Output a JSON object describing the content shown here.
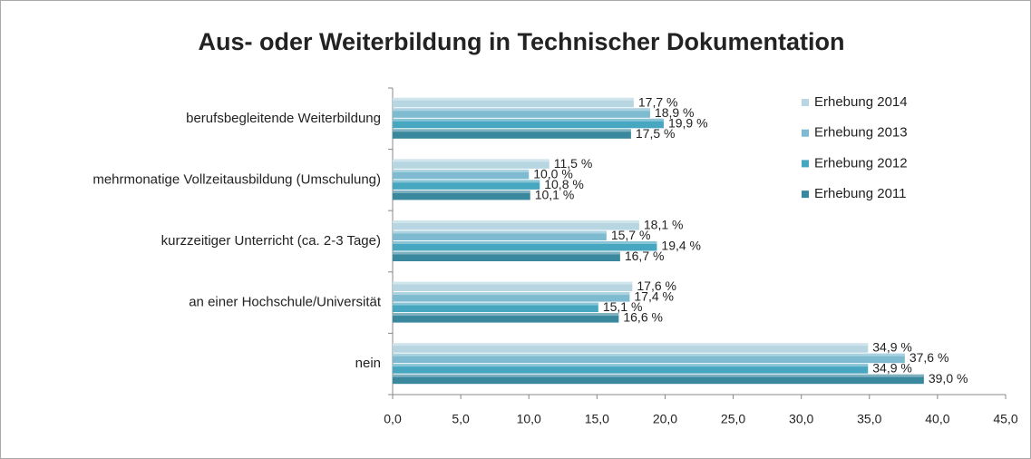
{
  "chart_data": {
    "type": "barh",
    "title": "Aus- oder Weiterbildung in Technischer Dokumentation",
    "categories": [
      "berufsbegleitende Weiterbildung",
      "mehrmonatige  Vollzeitausbildung  (Umschulung)",
      "kurzzeitiger Unterricht (ca. 2-3 Tage)",
      "an einer Hochschule/Universität",
      "nein"
    ],
    "series": [
      {
        "name": "Erhebung 2014",
        "color": "#b7d6e2",
        "values": [
          17.7,
          11.5,
          18.1,
          17.6,
          34.9
        ],
        "value_labels": [
          "17,7 %",
          "11,5 %",
          "18,1 %",
          "17,6 %",
          "34,9 %"
        ]
      },
      {
        "name": "Erhebung 2013",
        "color": "#7ebbd1",
        "values": [
          18.9,
          10.0,
          15.7,
          17.4,
          37.6
        ],
        "value_labels": [
          "18,9 %",
          "10,0 %",
          "15,7 %",
          "17,4 %",
          "37,6 %"
        ]
      },
      {
        "name": "Erhebung 2012",
        "color": "#47a6c0",
        "values": [
          19.9,
          10.8,
          19.4,
          15.1,
          34.9
        ],
        "value_labels": [
          "19,9 %",
          "10,8 %",
          "19,4 %",
          "15,1 %",
          "34,9 %"
        ]
      },
      {
        "name": "Erhebung 2011",
        "color": "#3a889e",
        "values": [
          17.5,
          10.1,
          16.7,
          16.6,
          39.0
        ],
        "value_labels": [
          "17,5 %",
          "10,1 %",
          "16,7 %",
          "16,6 %",
          "39,0 %"
        ]
      }
    ],
    "xlim": [
      0,
      45
    ],
    "xticks": [
      {
        "value": 0,
        "label": "0,0"
      },
      {
        "value": 5,
        "label": "5,0"
      },
      {
        "value": 10,
        "label": "10,0"
      },
      {
        "value": 15,
        "label": "15,0"
      },
      {
        "value": 20,
        "label": "20,0"
      },
      {
        "value": 25,
        "label": "25,0"
      },
      {
        "value": 30,
        "label": "30,0"
      },
      {
        "value": 35,
        "label": "35,0"
      },
      {
        "value": 40,
        "label": "40,0"
      },
      {
        "value": 45,
        "label": "45,0"
      }
    ],
    "legend": "right"
  }
}
